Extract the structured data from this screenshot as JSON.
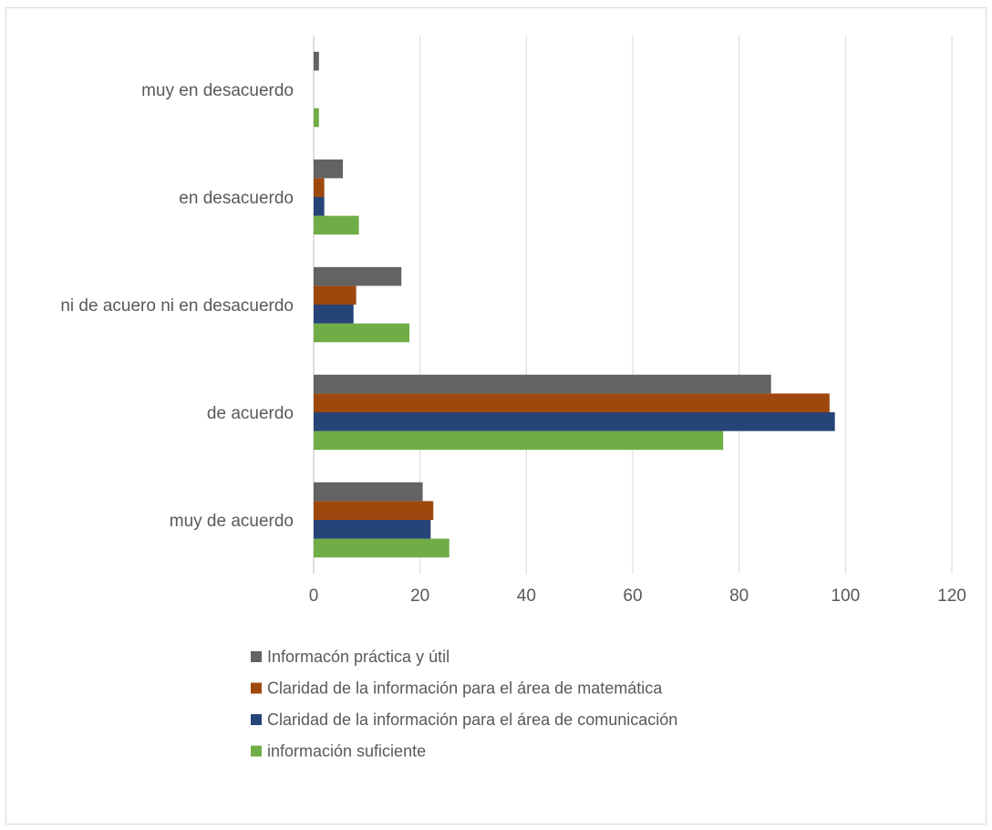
{
  "chart_data": {
    "type": "bar",
    "orientation": "horizontal",
    "categories": [
      "muy de acuerdo",
      "de acuerdo",
      "ni de acuero  ni en desacuerdo",
      "en desacuerdo",
      "muy en desacuerdo"
    ],
    "series": [
      {
        "name": "información suficiente",
        "color": "#70ad47",
        "values": [
          25.5,
          77,
          18,
          8.5,
          1
        ]
      },
      {
        "name": "Claridad de la información para el área de comunicación",
        "color": "#264478",
        "values": [
          22,
          98,
          7.5,
          2,
          0
        ]
      },
      {
        "name": "Claridad de la información para el área de matemática",
        "color": "#9e480e",
        "values": [
          22.5,
          97,
          8,
          2,
          0
        ]
      },
      {
        "name": "Informacón práctica y útil",
        "color": "#636363",
        "values": [
          20.5,
          86,
          16.5,
          5.5,
          1
        ]
      }
    ],
    "xlim": [
      0,
      120
    ],
    "xticks": [
      0,
      20,
      40,
      60,
      80,
      100,
      120
    ],
    "grid": true,
    "legend_position": "bottom",
    "legend_order": [
      "Informacón práctica y útil",
      "Claridad de la información para el área de matemática",
      "Claridad de la información para el área de comunicación",
      "información suficiente"
    ],
    "title": "",
    "xlabel": "",
    "ylabel": ""
  }
}
